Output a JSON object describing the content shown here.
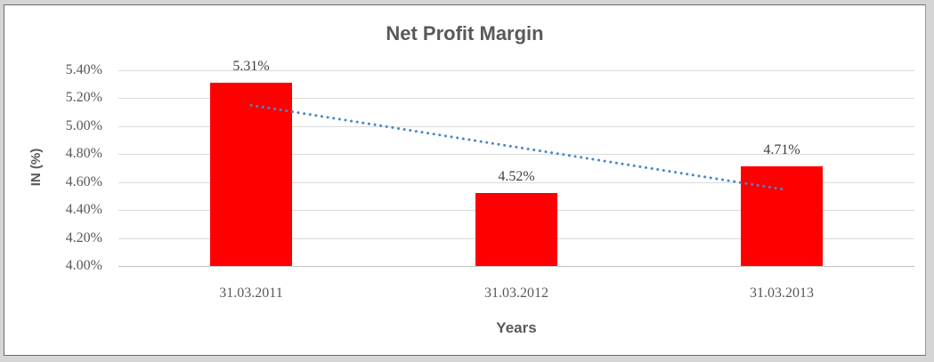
{
  "chart_data": {
    "type": "bar",
    "title": "Net Profit Margin",
    "xlabel": "Years",
    "ylabel": "IN (%)",
    "categories": [
      "31.03.2011",
      "31.03.2012",
      "31.03.2013"
    ],
    "values": [
      5.31,
      4.52,
      4.71
    ],
    "data_labels": [
      "5.31%",
      "4.52%",
      "4.71%"
    ],
    "ylim": [
      4.0,
      5.4
    ],
    "ytick_step": 0.2,
    "ytick_labels": [
      "4.00%",
      "4.20%",
      "4.40%",
      "4.60%",
      "4.80%",
      "5.00%",
      "5.20%",
      "5.40%"
    ],
    "grid": true,
    "legend": "none",
    "bar_color": "#ff0000",
    "trendline": {
      "type": "linear",
      "style": "dotted",
      "color": "#4a86c8",
      "start_value": 5.15,
      "end_value": 4.55
    }
  },
  "colors": {
    "title_text": "#595959",
    "tick_text": "#595959",
    "gridline": "#d9d9d9",
    "axis_line": "#bfbfbf",
    "frame_border": "#6b6b6b",
    "page_background": "#d5d5d5",
    "chart_background": "#ffffff"
  }
}
